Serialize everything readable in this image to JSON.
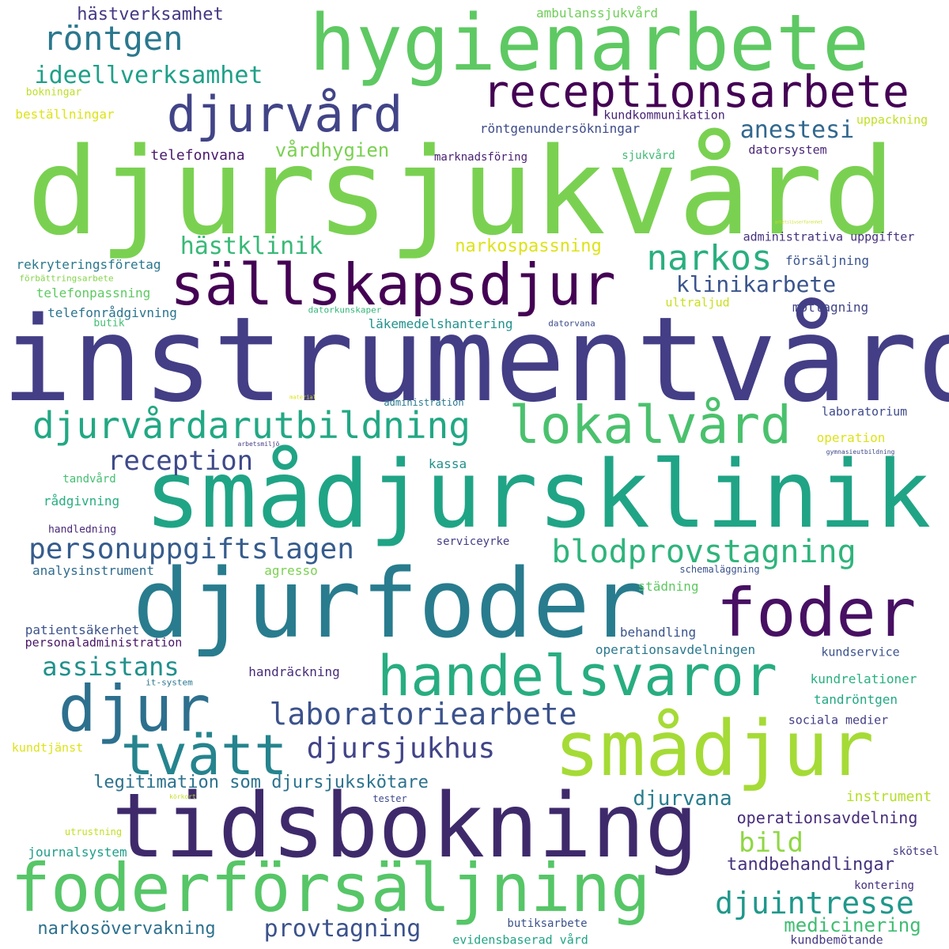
{
  "colors": {
    "background": "#ffffff",
    "palette": [
      "#440154",
      "#482878",
      "#3e4989",
      "#31688e",
      "#26828e",
      "#1f9e89",
      "#35b779",
      "#6ece58",
      "#b5de2b",
      "#fde725"
    ]
  },
  "words": [
    "djursjukvård",
    "instrumentvård",
    "smådjursklinik",
    "djurfoder",
    "tidsbokning",
    "hygienarbete",
    "foderförsäljning",
    "smådjur",
    "sällskapsdjur",
    "receptionsarbete",
    "foder",
    "handelsvaror",
    "djurvård",
    "djur",
    "lokalvård",
    "djurvårdarutbildning",
    "blodprovstagning",
    "tvätt",
    "personuppgiftslagen",
    "narkos",
    "röntgen",
    "djuintresse",
    "laboratoriearbete",
    "djursjukhus",
    "reception",
    "ideellverksamhet",
    "assistans",
    "anestesi",
    "hästklinik",
    "klinikarbete",
    "provtagning",
    "bild",
    "vårdhygien",
    "legitimation som djursjukskötare",
    "narkosövervakning",
    "djurvana",
    "hästverksamhet",
    "medicinering",
    "narkospassning",
    "tandbehandlingar",
    "operationsavdelning",
    "ambulanssjukvård",
    "kundkommunikation",
    "röntgenundersökningar",
    "telefonvana",
    "marknadsföring",
    "sjukvård",
    "datorsystem",
    "uppackning",
    "beställningar",
    "bokningar",
    "administrativa uppgifter",
    "rekryteringsföretag",
    "försäljning",
    "förbättringsarbete",
    "telefonpassning",
    "ultraljud",
    "telefonrådgivning",
    "butik",
    "datorkunskaper",
    "läkemedelshantering",
    "datorvana",
    "mottagning",
    "administration",
    "laboratorium",
    "arbetsmiljö",
    "material",
    "operation",
    "kassa",
    "tandvård",
    "gymnasieutbildning",
    "rådgivning",
    "handledning",
    "serviceyrke",
    "analysinstrument",
    "agresso",
    "schemaläggning",
    "städning",
    "patientsäkerhet",
    "personaladministration",
    "behandling",
    "operationsavdelningen",
    "kundservice",
    "handräckning",
    "it-system",
    "kundrelationer",
    "tandröntgen",
    "sociala medier",
    "kundtjänst",
    "instrument",
    "körkort",
    "tester",
    "utrustning",
    "journalsystem",
    "skötsel",
    "kontering",
    "butiksarbete",
    "evidensbaserad vård",
    "kundbemötande",
    "arbetslivserfarenhet"
  ]
}
